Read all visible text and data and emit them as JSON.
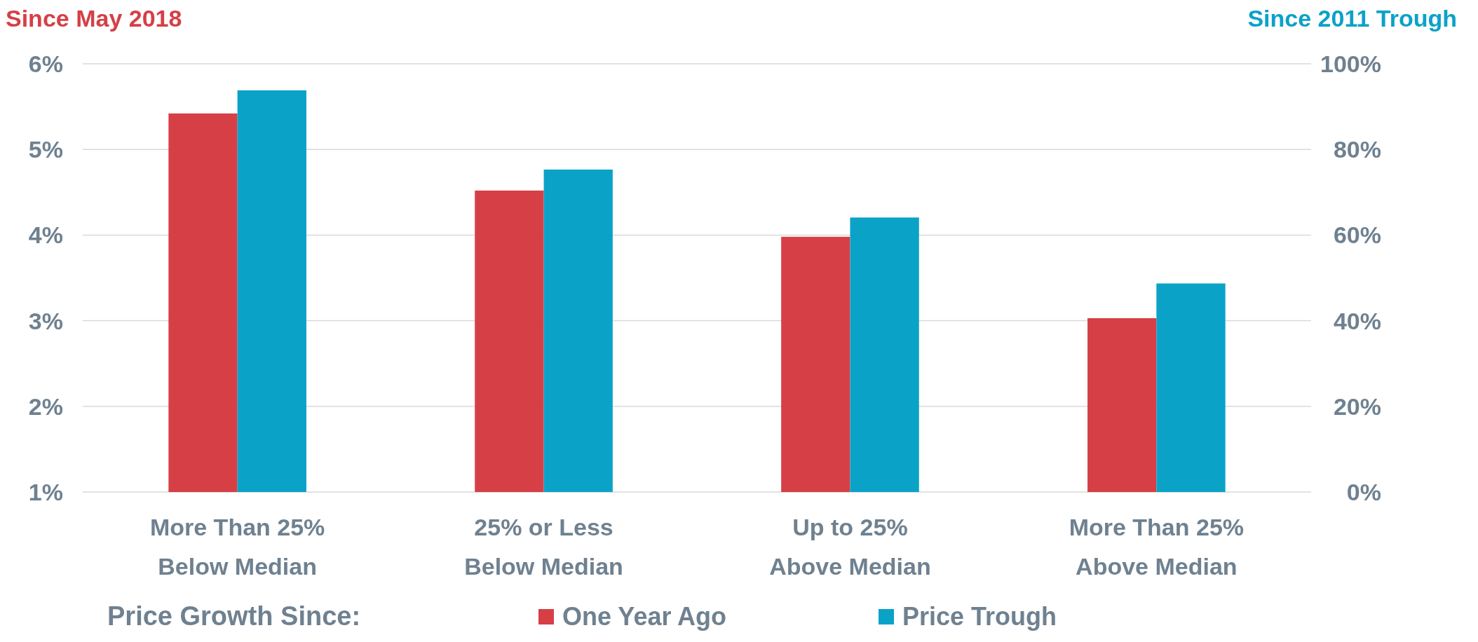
{
  "chart_data": {
    "type": "bar",
    "ylabel": "Since May 2018",
    "y2label": "Since 2011 Trough",
    "legend_title": "Price Growth Since:",
    "categories": [
      "More Than 25% Below Median",
      "25% or Less Below Median",
      "Up to 25% Above Median",
      "More Than 25% Above Median"
    ],
    "series": [
      {
        "name": "One Year Ago",
        "color": "#d63f46",
        "values": [
          5.42,
          4.52,
          3.98,
          3.03
        ]
      },
      {
        "name": "Price Trough",
        "color": "#0ba2c8",
        "axis": "y2",
        "values": [
          93.8,
          75.3,
          64.1,
          48.7
        ]
      }
    ],
    "ylim": [
      1,
      6
    ],
    "yticks": [
      {
        "value": 1,
        "label": "1%"
      },
      {
        "value": 2,
        "label": "2%"
      },
      {
        "value": 3,
        "label": "3%"
      },
      {
        "value": 4,
        "label": "4%"
      },
      {
        "value": 5,
        "label": "5%"
      },
      {
        "value": 6,
        "label": "6%"
      }
    ],
    "y2lim": [
      0,
      100
    ],
    "y2ticks": [
      {
        "value": 0,
        "label": "0%"
      },
      {
        "value": 20,
        "label": "20%"
      },
      {
        "value": 40,
        "label": "40%"
      },
      {
        "value": 60,
        "label": "60%"
      },
      {
        "value": 80,
        "label": "80%"
      },
      {
        "value": 100,
        "label": "100%"
      }
    ],
    "grid": "y",
    "legend": "bottom"
  }
}
